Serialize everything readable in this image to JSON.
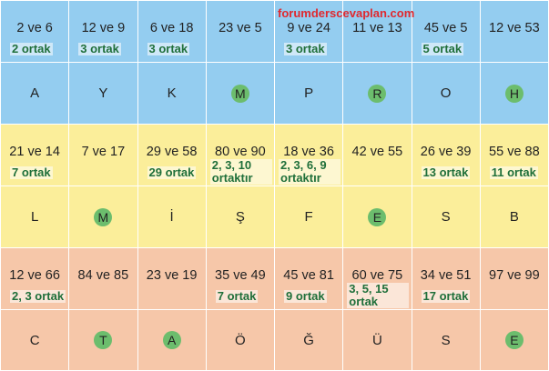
{
  "watermark": "forumderscevaplan.com",
  "rows": [
    {
      "band": "blue",
      "cells": [
        {
          "pair": "2 ve 6",
          "note": "2 ortak",
          "letter": "A",
          "circled": false
        },
        {
          "pair": "12 ve 9",
          "note": "3 ortak",
          "letter": "Y",
          "circled": false
        },
        {
          "pair": "6 ve 18",
          "note": "3 ortak",
          "letter": "K",
          "circled": false
        },
        {
          "pair": "23 ve 5",
          "note": "",
          "letter": "M",
          "circled": true
        },
        {
          "pair": "9 ve 24",
          "note": "3 ortak",
          "letter": "P",
          "circled": false
        },
        {
          "pair": "11 ve 13",
          "note": "",
          "letter": "R",
          "circled": true
        },
        {
          "pair": "45 ve 5",
          "note": "5 ortak",
          "letter": "O",
          "circled": false
        },
        {
          "pair": "12 ve 53",
          "note": "",
          "letter": "H",
          "circled": true
        }
      ]
    },
    {
      "band": "yellow",
      "cells": [
        {
          "pair": "21 ve 14",
          "note": "7 ortak",
          "letter": "L",
          "circled": false
        },
        {
          "pair": "7 ve 17",
          "note": "",
          "letter": "M",
          "circled": true
        },
        {
          "pair": "29 ve 58",
          "note": "29 ortak",
          "letter": "İ",
          "circled": false
        },
        {
          "pair": "80 ve 90",
          "note": "2, 3, 10 ortaktır",
          "letter": "Ş",
          "circled": false
        },
        {
          "pair": "18 ve 36",
          "note": "2, 3, 6, 9 ortaktır",
          "letter": "F",
          "circled": false
        },
        {
          "pair": "42 ve 55",
          "note": "",
          "letter": "E",
          "circled": true
        },
        {
          "pair": "26 ve 39",
          "note": "13 ortak",
          "letter": "S",
          "circled": false
        },
        {
          "pair": "55 ve 88",
          "note": "11 ortak",
          "letter": "B",
          "circled": false
        }
      ]
    },
    {
      "band": "peach",
      "cells": [
        {
          "pair": "12 ve 66",
          "note": "2, 3 ortak",
          "letter": "C",
          "circled": false
        },
        {
          "pair": "84 ve 85",
          "note": "",
          "letter": "T",
          "circled": true
        },
        {
          "pair": "23 ve 19",
          "note": "",
          "letter": "A",
          "circled": true
        },
        {
          "pair": "35 ve 49",
          "note": "7 ortak",
          "letter": "Ö",
          "circled": false
        },
        {
          "pair": "45 ve 81",
          "note": "9 ortak",
          "letter": "Ğ",
          "circled": false
        },
        {
          "pair": "60 ve 75",
          "note": "3, 5, 15 ortak",
          "letter": "Ü",
          "circled": false
        },
        {
          "pair": "34 ve 51",
          "note": "17 ortak",
          "letter": "S",
          "circled": false
        },
        {
          "pair": "97 ve 99",
          "note": "",
          "letter": "E",
          "circled": true
        }
      ]
    }
  ]
}
